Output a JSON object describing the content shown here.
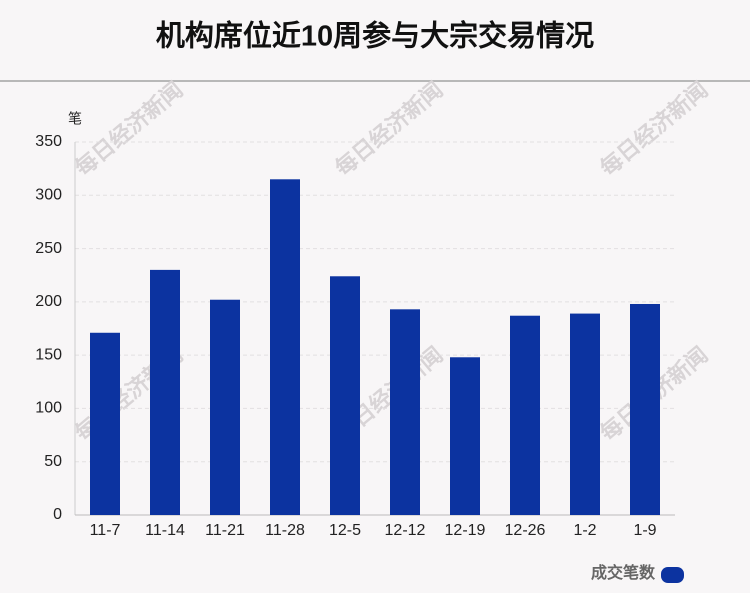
{
  "chart_data": {
    "type": "bar",
    "title": "机构席位近10周参与大宗交易情况",
    "y_unit": "笔",
    "categories": [
      "11-7",
      "11-14",
      "11-21",
      "11-28",
      "12-5",
      "12-12",
      "12-19",
      "12-26",
      "1-2",
      "1-9"
    ],
    "series": [
      {
        "name": "成交笔数",
        "color": "#0c33a0",
        "values": [
          171,
          230,
          202,
          315,
          224,
          193,
          148,
          187,
          189,
          198
        ]
      }
    ],
    "ylim": [
      0,
      350
    ],
    "yticks": [
      0,
      50,
      100,
      150,
      200,
      250,
      300,
      350
    ],
    "grid": true,
    "legend": "bottom-right",
    "watermark": "每日经济新闻"
  }
}
